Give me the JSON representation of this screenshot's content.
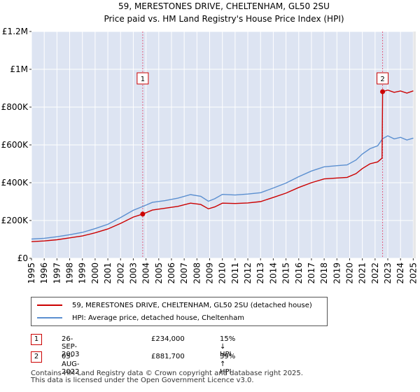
{
  "chart_data": {
    "type": "line",
    "title": "59, MERESTONES DRIVE, CHELTENHAM, GL50 2SU",
    "subtitle": "Price paid vs. HM Land Registry's House Price Index (HPI)",
    "xlim": [
      1995,
      2025.2
    ],
    "ylim": [
      0,
      1200000
    ],
    "y_ticks": [
      0,
      200000,
      400000,
      600000,
      800000,
      1000000,
      1200000
    ],
    "y_tick_labels": [
      "£0",
      "£200K",
      "£400K",
      "£600K",
      "£800K",
      "£1M",
      "£1.2M"
    ],
    "x_ticks": [
      "1995",
      "1996",
      "1997",
      "1998",
      "1999",
      "2000",
      "2001",
      "2002",
      "2003",
      "2004",
      "2005",
      "2006",
      "2007",
      "2008",
      "2009",
      "2010",
      "2011",
      "2012",
      "2013",
      "2014",
      "2015",
      "2016",
      "2017",
      "2018",
      "2019",
      "2020",
      "2021",
      "2022",
      "2023",
      "2024",
      "2025"
    ],
    "grid": true,
    "series": [
      {
        "name": "59, MERESTONES DRIVE, CHELTENHAM, GL50 2SU (detached house)",
        "color": "#cc0000",
        "points": [
          [
            1995.0,
            88000
          ],
          [
            1996.0,
            92000
          ],
          [
            1997.0,
            98000
          ],
          [
            1998.0,
            108000
          ],
          [
            1999.0,
            118000
          ],
          [
            2000.0,
            135000
          ],
          [
            2001.0,
            155000
          ],
          [
            2002.0,
            185000
          ],
          [
            2003.0,
            218000
          ],
          [
            2003.74,
            234000
          ],
          [
            2004.5,
            255000
          ],
          [
            2005.5,
            265000
          ],
          [
            2006.5,
            275000
          ],
          [
            2007.5,
            292000
          ],
          [
            2008.3,
            285000
          ],
          [
            2008.9,
            262000
          ],
          [
            2009.4,
            272000
          ],
          [
            2010.0,
            292000
          ],
          [
            2011.0,
            290000
          ],
          [
            2012.0,
            293000
          ],
          [
            2013.0,
            300000
          ],
          [
            2014.0,
            322000
          ],
          [
            2015.0,
            345000
          ],
          [
            2016.0,
            375000
          ],
          [
            2017.0,
            400000
          ],
          [
            2018.0,
            420000
          ],
          [
            2019.0,
            425000
          ],
          [
            2019.8,
            428000
          ],
          [
            2020.5,
            448000
          ],
          [
            2021.0,
            475000
          ],
          [
            2021.6,
            500000
          ],
          [
            2022.2,
            510000
          ],
          [
            2022.55,
            530000
          ],
          [
            2022.59,
            881700
          ],
          [
            2023.0,
            890000
          ],
          [
            2023.5,
            878000
          ],
          [
            2024.0,
            885000
          ],
          [
            2024.5,
            874000
          ],
          [
            2025.0,
            886000
          ]
        ]
      },
      {
        "name": "HPI: Average price, detached house, Cheltenham",
        "color": "#5b8fd0",
        "points": [
          [
            1995.0,
            102000
          ],
          [
            1996.0,
            106000
          ],
          [
            1997.0,
            114000
          ],
          [
            1998.0,
            125000
          ],
          [
            1999.0,
            137000
          ],
          [
            2000.0,
            157000
          ],
          [
            2001.0,
            180000
          ],
          [
            2002.0,
            216000
          ],
          [
            2003.0,
            254000
          ],
          [
            2003.74,
            274000
          ],
          [
            2004.5,
            296000
          ],
          [
            2005.5,
            305000
          ],
          [
            2006.5,
            318000
          ],
          [
            2007.5,
            337000
          ],
          [
            2008.3,
            328000
          ],
          [
            2008.9,
            302000
          ],
          [
            2009.4,
            315000
          ],
          [
            2010.0,
            338000
          ],
          [
            2011.0,
            335000
          ],
          [
            2012.0,
            340000
          ],
          [
            2013.0,
            347000
          ],
          [
            2014.0,
            372000
          ],
          [
            2015.0,
            398000
          ],
          [
            2016.0,
            432000
          ],
          [
            2017.0,
            462000
          ],
          [
            2018.0,
            484000
          ],
          [
            2019.0,
            490000
          ],
          [
            2019.8,
            494000
          ],
          [
            2020.5,
            520000
          ],
          [
            2021.0,
            552000
          ],
          [
            2021.6,
            580000
          ],
          [
            2022.2,
            595000
          ],
          [
            2022.59,
            633000
          ],
          [
            2023.0,
            648000
          ],
          [
            2023.5,
            632000
          ],
          [
            2024.0,
            640000
          ],
          [
            2024.5,
            626000
          ],
          [
            2025.0,
            636000
          ]
        ]
      }
    ],
    "sales": [
      {
        "label": "1",
        "x": 2003.74,
        "y": 234000
      },
      {
        "label": "2",
        "x": 2022.59,
        "y": 881700
      }
    ]
  },
  "legend": {
    "red_label": "59, MERESTONES DRIVE, CHELTENHAM, GL50 2SU (detached house)",
    "blue_label": "HPI: Average price, detached house, Cheltenham"
  },
  "sales_table": [
    {
      "num": "1",
      "date": "26-SEP-2003",
      "price": "£234,000",
      "hpi": "15% ↓ HPI"
    },
    {
      "num": "2",
      "date": "05-AUG-2022",
      "price": "£881,700",
      "hpi": "39% ↑ HPI"
    }
  ],
  "footer": {
    "line1": "Contains HM Land Registry data © Crown copyright and database right 2025.",
    "line2": "This data is licensed under the Open Government Licence v3.0."
  }
}
